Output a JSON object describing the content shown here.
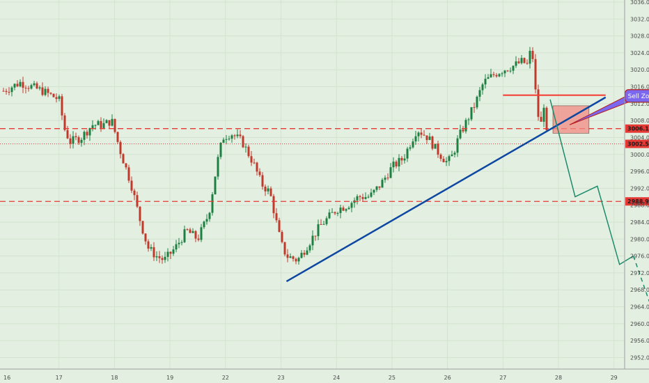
{
  "chart_data": {
    "type": "candlestick",
    "title": "",
    "xlabel": "",
    "ylabel": "",
    "ylim": [
      2949,
      3037
    ],
    "x_tick_labels": [
      {
        "day": 16,
        "label": "16"
      },
      {
        "day": 17,
        "label": "17"
      },
      {
        "day": 18,
        "label": "18"
      },
      {
        "day": 19,
        "label": "19"
      },
      {
        "day": 22,
        "label": "22"
      },
      {
        "day": 23,
        "label": "23"
      },
      {
        "day": 24,
        "label": "24"
      },
      {
        "day": 25,
        "label": "25"
      },
      {
        "day": 26,
        "label": "26"
      },
      {
        "day": 27,
        "label": "27"
      },
      {
        "day": 28,
        "label": "28"
      },
      {
        "day": 29,
        "label": "29"
      }
    ],
    "y_ticks": [
      2952.0,
      2956.0,
      2960.0,
      2964.0,
      2968.0,
      2972.0,
      2976.0,
      2980.0,
      2984.0,
      2988.0,
      2992.0,
      2996.0,
      3000.0,
      3004.0,
      3008.0,
      3012.0,
      3016.0,
      3020.0,
      3024.0,
      3028.0,
      3032.0,
      3036.0
    ],
    "y_tick_labels": [
      "2952.0",
      "2956.0",
      "2960.0",
      "2964.0",
      "2968.0",
      "2972.0",
      "2976.0",
      "2980.0",
      "2984.0",
      "2988.0",
      "2992.0",
      "2996.0",
      "3000.0",
      "3004.0",
      "3008.0",
      "3012.0",
      "3016.0",
      "3020.0",
      "3024.0",
      "3028.0",
      "3032.0",
      "3036.0"
    ],
    "price_path": [
      [
        0,
        3015
      ],
      [
        0.15,
        3016
      ],
      [
        0.3,
        3017
      ],
      [
        0.5,
        3016
      ],
      [
        0.7,
        3015
      ],
      [
        1.0,
        3013
      ],
      [
        1.1,
        3006
      ],
      [
        1.2,
        3003
      ],
      [
        1.4,
        3004
      ],
      [
        1.6,
        3007
      ],
      [
        1.8,
        3007
      ],
      [
        1.95,
        3008
      ],
      [
        2.1,
        3001
      ],
      [
        2.3,
        2993
      ],
      [
        2.45,
        2985
      ],
      [
        2.6,
        2978
      ],
      [
        2.75,
        2976
      ],
      [
        2.9,
        2975
      ],
      [
        3.1,
        2978
      ],
      [
        3.3,
        2982
      ],
      [
        3.5,
        2980
      ],
      [
        3.7,
        2986
      ],
      [
        3.85,
        2998
      ],
      [
        3.95,
        3004
      ],
      [
        4.1,
        3005
      ],
      [
        4.3,
        3003
      ],
      [
        4.5,
        2998
      ],
      [
        4.65,
        2993
      ],
      [
        4.8,
        2991
      ],
      [
        5.0,
        2979
      ],
      [
        5.1,
        2976
      ],
      [
        5.3,
        2975
      ],
      [
        5.5,
        2979
      ],
      [
        5.7,
        2983
      ],
      [
        5.85,
        2985
      ],
      [
        6.0,
        2987
      ],
      [
        6.2,
        2988
      ],
      [
        6.4,
        2990
      ],
      [
        6.6,
        2990
      ],
      [
        6.8,
        2993
      ],
      [
        7.0,
        2997
      ],
      [
        7.2,
        2999
      ],
      [
        7.45,
        3006
      ],
      [
        7.65,
        3004
      ],
      [
        7.8,
        3001
      ],
      [
        8.0,
        2998
      ],
      [
        8.1,
        3000
      ],
      [
        8.2,
        3004
      ],
      [
        8.35,
        3008
      ],
      [
        8.5,
        3012
      ],
      [
        8.65,
        3017
      ],
      [
        8.85,
        3019
      ],
      [
        9.0,
        3020
      ],
      [
        9.2,
        3021
      ],
      [
        9.35,
        3022
      ],
      [
        9.45,
        3021
      ],
      [
        9.5,
        3025
      ],
      [
        9.55,
        3022
      ],
      [
        9.6,
        3012
      ],
      [
        9.65,
        3008
      ],
      [
        9.7,
        3007
      ],
      [
        9.73,
        3013
      ],
      [
        9.76,
        3008
      ],
      [
        9.8,
        3003
      ]
    ],
    "dashed_levels": [
      {
        "price": 3006.1,
        "label": "3006.1",
        "color": "#e53935"
      },
      {
        "price": 2988.9,
        "label": "2988.9",
        "color": "#e53935"
      }
    ],
    "dotted_levels": [
      {
        "price": 3002.5,
        "label": "3002.5",
        "color": "#e53935"
      }
    ],
    "resistance_line": {
      "x1": 9.0,
      "x2": 10.85,
      "price": 3014,
      "color": "#f44336"
    },
    "trend_line": {
      "x1": 5.1,
      "y1": 2970,
      "x2": 10.85,
      "y2": 3013.5,
      "color": "#0d47a1"
    },
    "sell_zone": {
      "x1": 9.9,
      "x2": 10.55,
      "y_top": 3011.5,
      "y_bottom": 3005,
      "color": "#f28b82"
    },
    "projection_solid": [
      [
        9.85,
        3013
      ],
      [
        10.3,
        2990
      ],
      [
        10.7,
        2992.5
      ],
      [
        11.1,
        2974
      ],
      [
        11.35,
        2976
      ]
    ],
    "projection_dashed": [
      [
        11.35,
        2976
      ],
      [
        11.75,
        2961
      ]
    ],
    "projection_color": "#1b8a6b",
    "callout": {
      "text": "Sell Zone",
      "bg": "#7b68ee",
      "border": "#b71c1c",
      "arrow_from": [
        11.25,
        3013
      ],
      "arrow_to": [
        10.2,
        3007
      ]
    }
  }
}
